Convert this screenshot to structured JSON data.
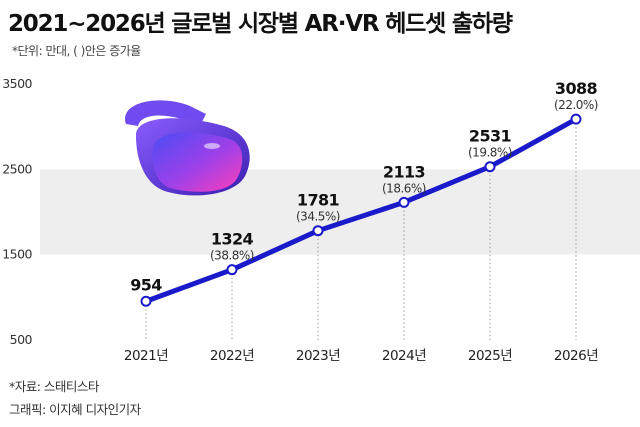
{
  "header": {
    "title": "2021~2026년 글로벌 시장별 AR·VR 헤드셋 출하량",
    "unit_note": "*단위: 만대, ( )안은 증가율"
  },
  "footer": {
    "source": "*자료: 스태티스타",
    "credit": "그래픽: 이지혜 디자인기자"
  },
  "colors": {
    "line": "#1a1acb",
    "band": "#eeeeee",
    "headset_body": "#6a3ff0",
    "headset_lens": "#d63ad8"
  },
  "icons": [
    "vr-headset-icon"
  ],
  "chart_data": {
    "type": "line",
    "title": "2021~2026년 글로벌 시장별 AR·VR 헤드셋 출하량",
    "xlabel": "",
    "ylabel": "",
    "ylim": [
      500,
      3500
    ],
    "yticks": [
      500,
      1500,
      2500,
      3500
    ],
    "categories": [
      "2021년",
      "2022년",
      "2023년",
      "2024년",
      "2025년",
      "2026년"
    ],
    "values": [
      954,
      1324,
      1781,
      2113,
      2531,
      3088
    ],
    "growth_labels": [
      "",
      "(38.8%)",
      "(34.5%)",
      "(18.6%)",
      "(19.8%)",
      "(22.0%)"
    ],
    "grid": "alternating horizontal bands",
    "legend": "none"
  }
}
